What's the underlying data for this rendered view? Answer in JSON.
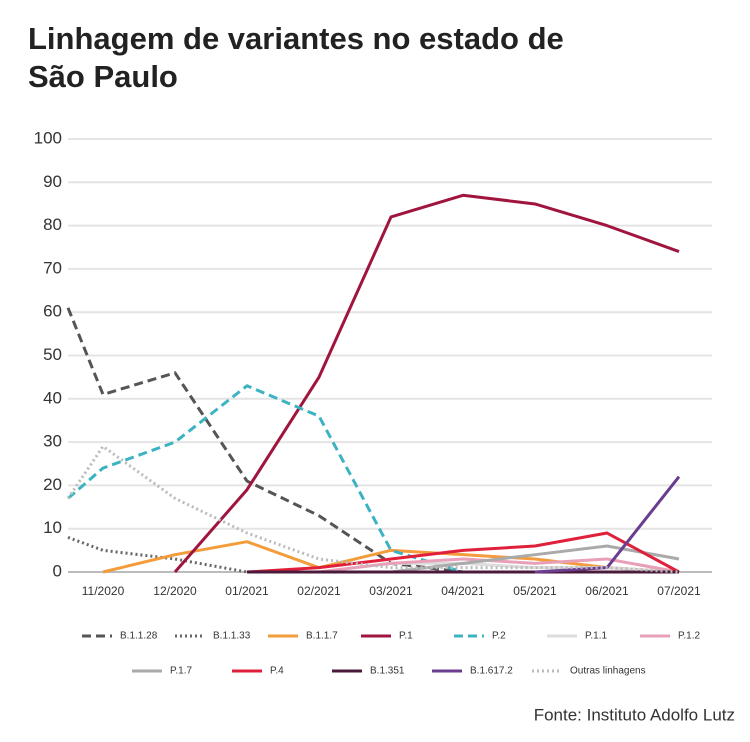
{
  "chart_data": {
    "type": "line",
    "title": "Linhagem de variantes no estado de São Paulo",
    "source": "Fonte: Instituto Adolfo Lutz",
    "categories": [
      null,
      "11/2020",
      "12/2020",
      "01/2021",
      "02/2021",
      "03/2021",
      "04/2021",
      "05/2021",
      "06/2021",
      "07/2021"
    ],
    "ylim": [
      0,
      100
    ],
    "yticks": [
      0,
      10,
      20,
      30,
      40,
      50,
      60,
      70,
      80,
      90,
      100
    ],
    "grid": true,
    "series": [
      {
        "name": "B.1.1.28",
        "color": "#555555",
        "dash": "dashed",
        "values": [
          61,
          41,
          46,
          21,
          13,
          2,
          0,
          0,
          0,
          0
        ]
      },
      {
        "name": "B.1.1.33",
        "color": "#666666",
        "dash": "dotted",
        "values": [
          8,
          5,
          3,
          0,
          0,
          0,
          0,
          0,
          0,
          0
        ]
      },
      {
        "name": "B.1.1.7",
        "color": "#f39c3c",
        "dash": "solid",
        "values": [
          null,
          0,
          4,
          7,
          1,
          5,
          4,
          3,
          1,
          0
        ]
      },
      {
        "name": "P.1",
        "color": "#a0153e",
        "dash": "solid",
        "values": [
          null,
          null,
          0,
          19,
          45,
          82,
          87,
          85,
          80,
          74
        ]
      },
      {
        "name": "P.2",
        "color": "#3bb3c3",
        "dash": "dashed",
        "values": [
          17,
          24,
          30,
          43,
          36,
          5,
          0,
          0,
          0,
          0
        ]
      },
      {
        "name": "P.1.1",
        "color": "#dddddd",
        "dash": "solid",
        "values": [
          null,
          null,
          null,
          0,
          0,
          2,
          2,
          1,
          1,
          0
        ]
      },
      {
        "name": "P.1.2",
        "color": "#e8a0b8",
        "dash": "solid",
        "values": [
          null,
          null,
          null,
          0,
          0,
          2,
          3,
          2,
          3,
          0
        ]
      },
      {
        "name": "P.1.7",
        "color": "#aaaaaa",
        "dash": "solid",
        "values": [
          null,
          null,
          null,
          0,
          0,
          0,
          2,
          4,
          6,
          3
        ]
      },
      {
        "name": "P.4",
        "color": "#e0203a",
        "dash": "solid",
        "values": [
          null,
          null,
          null,
          0,
          1,
          3,
          5,
          6,
          9,
          0
        ]
      },
      {
        "name": "B.1.351",
        "color": "#4a1a3a",
        "dash": "solid",
        "values": [
          null,
          null,
          null,
          0,
          0,
          0,
          0,
          0,
          0,
          0
        ]
      },
      {
        "name": "B.1.617.2",
        "color": "#6a3d8f",
        "dash": "solid",
        "values": [
          null,
          null,
          null,
          null,
          null,
          null,
          null,
          0,
          1,
          22
        ]
      },
      {
        "name": "Outras linhagens",
        "color": "#bbbbbb",
        "dash": "dotted",
        "values": [
          17,
          29,
          17,
          9,
          3,
          1,
          1,
          1,
          1,
          0
        ]
      }
    ]
  }
}
